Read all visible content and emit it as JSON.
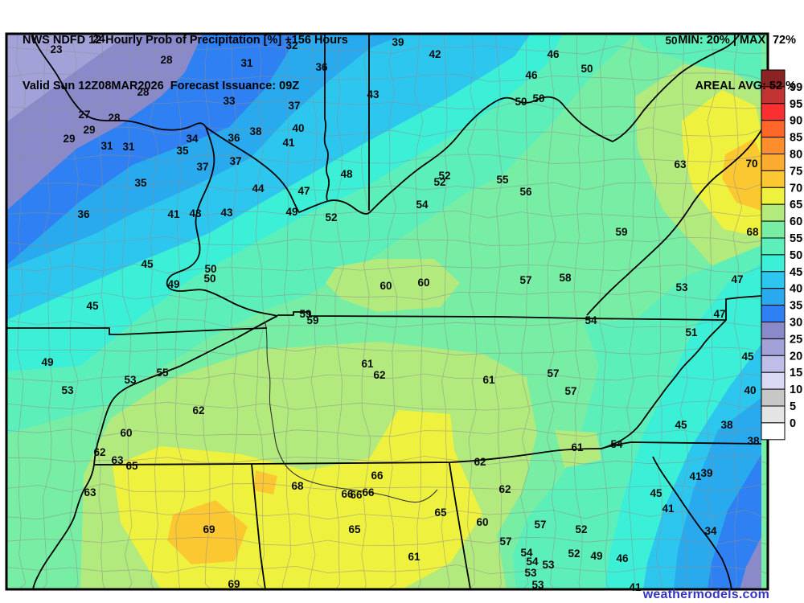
{
  "header": {
    "title": "NWS NDFD 12-Hourly Prob of Precipitation [%] +156 Hours",
    "valid": "Valid Sun 12Z08MAR2026  Forecast Issuance: 09Z",
    "min_max": "MIN: 20% | MAX: 72%",
    "areal_avg": "AREAL AVG: 52 %"
  },
  "watermark": {
    "text": "weathermodels.com",
    "color": "#3434c0"
  },
  "legend": {
    "levels": [
      99,
      95,
      90,
      85,
      80,
      75,
      70,
      65,
      60,
      55,
      50,
      45,
      40,
      35,
      30,
      25,
      20,
      15,
      10,
      5,
      0
    ],
    "colors": [
      "#8b2323",
      "#c43333",
      "#fb2f2f",
      "#fd6529",
      "#fd8d2d",
      "#fdab30",
      "#fcc831",
      "#eef23e",
      "#b2ea7e",
      "#77eea4",
      "#5defb9",
      "#3cf0d7",
      "#2dc6ef",
      "#29a9ee",
      "#2f80f2",
      "#8a8aca",
      "#a2a2d8",
      "#bebee8",
      "#d9d9f4",
      "#c7c7c7",
      "#e4e4e4",
      "#ffffff"
    ]
  },
  "map": {
    "county_line_color": "#8f8f8f",
    "state_border_color": "#000000",
    "values": [
      [
        23,
        70,
        61
      ],
      [
        24,
        123,
        48
      ],
      [
        28,
        207,
        74
      ],
      [
        28,
        178,
        114
      ],
      [
        27,
        105,
        142
      ],
      [
        28,
        142,
        146
      ],
      [
        29,
        111,
        161
      ],
      [
        29,
        86,
        172
      ],
      [
        31,
        133,
        181
      ],
      [
        31,
        160,
        182
      ],
      [
        34,
        239,
        172
      ],
      [
        35,
        227,
        187
      ],
      [
        35,
        175,
        227
      ],
      [
        36,
        104,
        266
      ],
      [
        41,
        216,
        266
      ],
      [
        43,
        243,
        265
      ],
      [
        31,
        307,
        78
      ],
      [
        32,
        363,
        56
      ],
      [
        33,
        285,
        125
      ],
      [
        36,
        291,
        171
      ],
      [
        38,
        318,
        163
      ],
      [
        37,
        293,
        200
      ],
      [
        37,
        252,
        207
      ],
      [
        36,
        400,
        83
      ],
      [
        37,
        366,
        131
      ],
      [
        40,
        371,
        159
      ],
      [
        41,
        359,
        177
      ],
      [
        43,
        282,
        264
      ],
      [
        44,
        321,
        234
      ],
      [
        47,
        378,
        237
      ],
      [
        48,
        431,
        216
      ],
      [
        49,
        363,
        263
      ],
      [
        52,
        412,
        270
      ],
      [
        43,
        464,
        117
      ],
      [
        39,
        495,
        52
      ],
      [
        42,
        541,
        67
      ],
      [
        46,
        688,
        67
      ],
      [
        46,
        661,
        93
      ],
      [
        50,
        670,
        122
      ],
      [
        50,
        648,
        126
      ],
      [
        50,
        835,
        50
      ],
      [
        50,
        730,
        85
      ],
      [
        52,
        553,
        218
      ],
      [
        52,
        547,
        226
      ],
      [
        55,
        625,
        223
      ],
      [
        56,
        654,
        238
      ],
      [
        54,
        525,
        254
      ],
      [
        63,
        846,
        204
      ],
      [
        70,
        935,
        203
      ],
      [
        59,
        773,
        288
      ],
      [
        68,
        936,
        288
      ],
      [
        45,
        183,
        328
      ],
      [
        50,
        262,
        334
      ],
      [
        50,
        261,
        346
      ],
      [
        49,
        216,
        353
      ],
      [
        45,
        115,
        380
      ],
      [
        60,
        480,
        355
      ],
      [
        60,
        527,
        351
      ],
      [
        57,
        654,
        348
      ],
      [
        58,
        703,
        345
      ],
      [
        53,
        848,
        357
      ],
      [
        47,
        917,
        347
      ],
      [
        47,
        895,
        390
      ],
      [
        54,
        735,
        398
      ],
      [
        59,
        380,
        390
      ],
      [
        59,
        389,
        398
      ],
      [
        51,
        860,
        413
      ],
      [
        45,
        930,
        443
      ],
      [
        40,
        933,
        485
      ],
      [
        49,
        59,
        450
      ],
      [
        55,
        202,
        463
      ],
      [
        53,
        162,
        472
      ],
      [
        53,
        84,
        485
      ],
      [
        61,
        457,
        452
      ],
      [
        62,
        472,
        466
      ],
      [
        61,
        608,
        472
      ],
      [
        57,
        688,
        464
      ],
      [
        57,
        710,
        486
      ],
      [
        60,
        157,
        538
      ],
      [
        62,
        124,
        562
      ],
      [
        63,
        146,
        572
      ],
      [
        65,
        164,
        579
      ],
      [
        63,
        112,
        612
      ],
      [
        62,
        247,
        510
      ],
      [
        66,
        469,
        591
      ],
      [
        68,
        370,
        604
      ],
      [
        66,
        432,
        614
      ],
      [
        66,
        443,
        615
      ],
      [
        66,
        458,
        612
      ],
      [
        69,
        260,
        658
      ],
      [
        65,
        441,
        658
      ],
      [
        69,
        291,
        726
      ],
      [
        61,
        515,
        692
      ],
      [
        62,
        597,
        574
      ],
      [
        62,
        628,
        608
      ],
      [
        65,
        548,
        637
      ],
      [
        60,
        600,
        649
      ],
      [
        57,
        672,
        652
      ],
      [
        57,
        629,
        673
      ],
      [
        54,
        655,
        687
      ],
      [
        54,
        662,
        698
      ],
      [
        53,
        682,
        702
      ],
      [
        53,
        660,
        712
      ],
      [
        53,
        669,
        727
      ],
      [
        52,
        714,
        688
      ],
      [
        61,
        718,
        556
      ],
      [
        54,
        767,
        552
      ],
      [
        45,
        847,
        528
      ],
      [
        38,
        904,
        528
      ],
      [
        38,
        937,
        548
      ],
      [
        41,
        865,
        592
      ],
      [
        39,
        879,
        588
      ],
      [
        45,
        816,
        613
      ],
      [
        41,
        831,
        632
      ],
      [
        34,
        884,
        660
      ],
      [
        52,
        723,
        658
      ],
      [
        49,
        742,
        691
      ],
      [
        46,
        774,
        694
      ],
      [
        41,
        790,
        730
      ]
    ]
  }
}
